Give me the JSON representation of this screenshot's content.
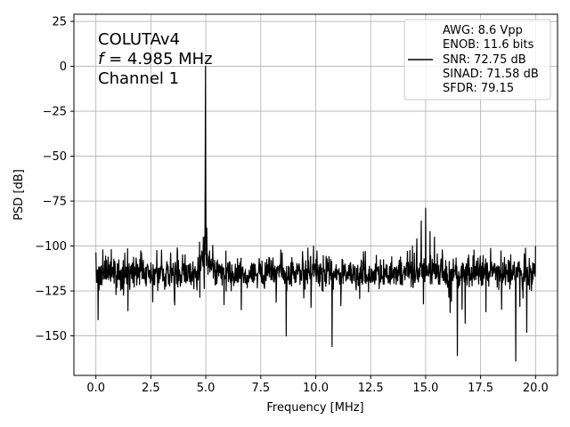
{
  "chart_data": {
    "type": "line",
    "xlabel": "Frequency [MHz]",
    "ylabel": "PSD [dB]",
    "xlim": [
      -1.0,
      21.0
    ],
    "ylim": [
      -172,
      29
    ],
    "xticks": [
      0.0,
      2.5,
      5.0,
      7.5,
      10.0,
      12.5,
      15.0,
      17.5,
      20.0
    ],
    "xtick_labels": [
      "0.0",
      "2.5",
      "5.0",
      "7.5",
      "10.0",
      "12.5",
      "15.0",
      "17.5",
      "20.0"
    ],
    "yticks": [
      25,
      0,
      -25,
      -50,
      -75,
      -100,
      -125,
      -150
    ],
    "ytick_labels": [
      "25",
      "0",
      "−25",
      "−50",
      "−75",
      "−100",
      "−125",
      "−150"
    ],
    "grid": true,
    "series_color": "#000000",
    "noise_floor_db": -115,
    "noise_band_db": [
      -127,
      -104
    ],
    "peaks": [
      {
        "x": 4.985,
        "y": 0
      },
      {
        "x": 4.95,
        "y": -95
      },
      {
        "x": 5.05,
        "y": -90
      },
      {
        "x": 15.0,
        "y": -79
      },
      {
        "x": 14.8,
        "y": -86
      },
      {
        "x": 15.2,
        "y": -92
      },
      {
        "x": 14.6,
        "y": -96
      },
      {
        "x": 15.4,
        "y": -95
      },
      {
        "x": 14.4,
        "y": -100
      },
      {
        "x": 20.0,
        "y": -100
      },
      {
        "x": 9.9,
        "y": -100
      },
      {
        "x": 3.7,
        "y": -101
      },
      {
        "x": 0.7,
        "y": -102
      }
    ],
    "dips": [
      {
        "x": 0.1,
        "y": -141
      },
      {
        "x": 8.65,
        "y": -150
      },
      {
        "x": 10.75,
        "y": -156
      },
      {
        "x": 16.45,
        "y": -161
      },
      {
        "x": 19.1,
        "y": -164
      },
      {
        "x": 19.6,
        "y": -148
      },
      {
        "x": 16.8,
        "y": -143
      }
    ],
    "annotation_lines": [
      "COLUTAv4",
      "f = 4.985 MHz",
      "Channel 1"
    ],
    "legend": {
      "placement": "top-right",
      "lines": [
        "AWG: 8.6 Vpp",
        "ENOB: 11.6 bits",
        "SNR: 72.75 dB",
        "SINAD: 71.58 dB",
        "SFDR: 79.15"
      ]
    }
  }
}
